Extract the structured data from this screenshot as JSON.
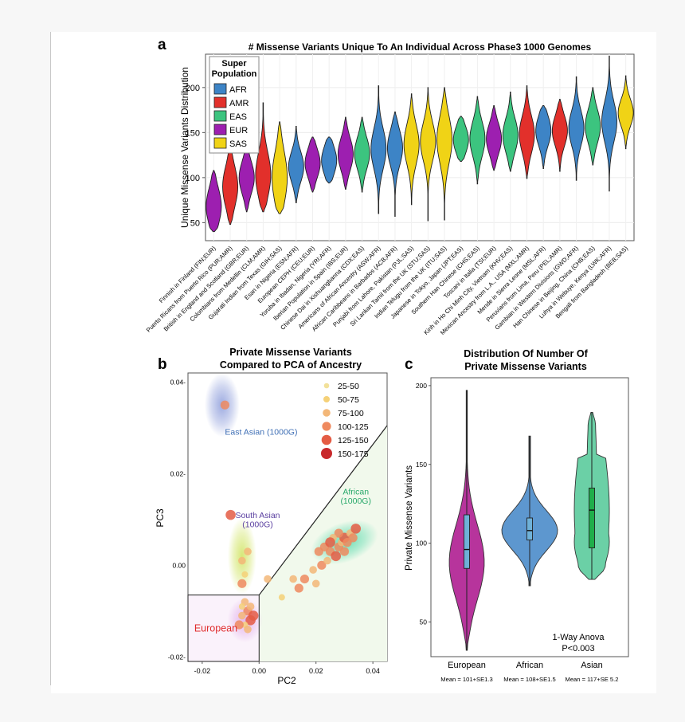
{
  "colors": {
    "AFR": "#3d84c6",
    "AMR": "#e2302b",
    "EAS": "#3cc47f",
    "EUR": "#9d1fb0",
    "SAS": "#f0d316",
    "European_c": "#b7349c",
    "African_c": "#5d97cf",
    "Asian_c": "#6bd0a6"
  },
  "chart_data": [
    {
      "panel": "a",
      "type": "violin",
      "title": "# Missense Variants Unique To An Individual Across Phase3 1000 Genomes",
      "ylabel": "Unique Missense Variants Distribution",
      "ylim": [
        30,
        237
      ],
      "yticks": [
        50,
        100,
        150,
        200
      ],
      "grid": true,
      "legend": {
        "title_line1": "Super",
        "title_line2": "Population",
        "placement": "top-left",
        "entries": [
          "AFR",
          "AMR",
          "EAS",
          "EUR",
          "SAS"
        ]
      },
      "categories": [
        {
          "label": "Finnish in Finland (FIN;EUR)",
          "group": "EUR",
          "min": 40,
          "q1": 57,
          "median": 68,
          "q3": 80,
          "max": 108
        },
        {
          "label": "Puerto Ricans from Puerto Rico (PUR;AMR)",
          "group": "AMR",
          "min": 48,
          "q1": 78,
          "median": 90,
          "q3": 103,
          "max": 132
        },
        {
          "label": "British in England and Scotland (GBR;EUR)",
          "group": "EUR",
          "min": 62,
          "q1": 90,
          "median": 100,
          "q3": 110,
          "max": 135
        },
        {
          "label": "Colombians from Medellin (CLM;AMR)",
          "group": "AMR",
          "min": 62,
          "q1": 90,
          "median": 103,
          "q3": 118,
          "max": 183
        },
        {
          "label": "Gujarati Indian from Texas (GIH;SAS)",
          "group": "SAS",
          "min": 60,
          "q1": 88,
          "median": 100,
          "q3": 120,
          "max": 162
        },
        {
          "label": "Esan in Nigeria (ESN;AFR)",
          "group": "AFR",
          "min": 72,
          "q1": 103,
          "median": 112,
          "q3": 122,
          "max": 157
        },
        {
          "label": "European CEPH (CEU;EUR)",
          "group": "EUR",
          "min": 84,
          "q1": 107,
          "median": 116,
          "q3": 125,
          "max": 145
        },
        {
          "label": "Yoruba in Ibadan, Nigeria (YRI;AFR)",
          "group": "AFR",
          "min": 94,
          "q1": 110,
          "median": 119,
          "q3": 128,
          "max": 145
        },
        {
          "label": "Iberian Population in Spain (IBS;EUR)",
          "group": "EUR",
          "min": 87,
          "q1": 117,
          "median": 126,
          "q3": 137,
          "max": 167
        },
        {
          "label": "Chinese Dai in Xishuangbanna (CDX;EAS)",
          "group": "EAS",
          "min": 84,
          "q1": 118,
          "median": 127,
          "q3": 138,
          "max": 167
        },
        {
          "label": "Americans of African Ancestry (ASW;AFR)",
          "group": "AFR",
          "min": 60,
          "q1": 120,
          "median": 132,
          "q3": 145,
          "max": 202
        },
        {
          "label": "African Caribbeans in Barbados (ACB;AFR)",
          "group": "AFR",
          "min": 57,
          "q1": 123,
          "median": 133,
          "q3": 145,
          "max": 173
        },
        {
          "label": "Punjabi from Lahore, Pakistan (PJL;SAS)",
          "group": "SAS",
          "min": 70,
          "q1": 125,
          "median": 137,
          "q3": 150,
          "max": 193
        },
        {
          "label": "Sri Lankan Tamil from the UK (STU;SAS)",
          "group": "SAS",
          "min": 52,
          "q1": 128,
          "median": 140,
          "q3": 152,
          "max": 200
        },
        {
          "label": "Indian Telugu from the UK (ITU;SAS)",
          "group": "SAS",
          "min": 53,
          "q1": 128,
          "median": 142,
          "q3": 157,
          "max": 200
        },
        {
          "label": "Japanese in Tokyo, Japan (JPT;EAS)",
          "group": "EAS",
          "min": 118,
          "q1": 133,
          "median": 142,
          "q3": 150,
          "max": 168
        },
        {
          "label": "Southern Han Chinese (CHS;EAS)",
          "group": "EAS",
          "min": 93,
          "q1": 133,
          "median": 143,
          "q3": 155,
          "max": 190
        },
        {
          "label": "Toscani in Italia (TSI;EUR)",
          "group": "EUR",
          "min": 108,
          "q1": 134,
          "median": 143,
          "q3": 153,
          "max": 180
        },
        {
          "label": "Kinh in Ho Chi Minh City, Vietnam (KHV;EAS)",
          "group": "EAS",
          "min": 107,
          "q1": 137,
          "median": 147,
          "q3": 158,
          "max": 195
        },
        {
          "label": "Mexican Ancestry from L.A., USA (MXL;AMR)",
          "group": "AMR",
          "min": 99,
          "q1": 137,
          "median": 148,
          "q3": 160,
          "max": 202
        },
        {
          "label": "Mende in Sierra Leone (MSL;AFR)",
          "group": "AFR",
          "min": 110,
          "q1": 143,
          "median": 152,
          "q3": 162,
          "max": 180
        },
        {
          "label": "Peruvians from Lima, Peru (PEL;AMR)",
          "group": "AMR",
          "min": 107,
          "q1": 143,
          "median": 152,
          "q3": 162,
          "max": 187
        },
        {
          "label": "Gambian in Western Divisions (GWD;AFR)",
          "group": "AFR",
          "min": 97,
          "q1": 145,
          "median": 155,
          "q3": 167,
          "max": 212
        },
        {
          "label": "Han Chinese in Beijing, China (CHB;EAS)",
          "group": "EAS",
          "min": 114,
          "q1": 147,
          "median": 157,
          "q3": 168,
          "max": 200
        },
        {
          "label": "Luhya in Webuye, Kenya (LWK;AFR)",
          "group": "AFR",
          "min": 85,
          "q1": 150,
          "median": 162,
          "q3": 175,
          "max": 235
        },
        {
          "label": "Bengali from Bangladesh (BEB;SAS)",
          "group": "SAS",
          "min": 132,
          "q1": 163,
          "median": 172,
          "q3": 180,
          "max": 213
        }
      ]
    },
    {
      "panel": "b",
      "type": "scatter",
      "title_line1": "Private Missense Variants",
      "title_line2": "Compared to PCA of Ancestry",
      "xlabel": "PC2",
      "ylabel": "PC3",
      "xlim": [
        -0.025,
        0.045
      ],
      "ylim": [
        -0.021,
        0.042
      ],
      "xticks": [
        "-0.02",
        "0.00",
        "0.02",
        "0.04"
      ],
      "yticks": [
        "0.04-",
        "0.02-",
        "0.00",
        "-0.02-"
      ],
      "regions": [
        {
          "label": "East Asian (1000G)",
          "color": "#3f6fb5",
          "cx": -0.013,
          "cy": 0.035
        },
        {
          "label_line1": "South Asian",
          "label_line2": "(1000G)",
          "color": "#5a3fa0",
          "cx": -0.006,
          "cy": 0.004
        },
        {
          "label_line1": "African",
          "label_line2": "(1000G)",
          "color": "#28a86a",
          "cx": 0.03,
          "cy": 0.005
        },
        {
          "label": "European",
          "color": "#e02b2b",
          "cx": -0.006,
          "cy": -0.012
        }
      ],
      "legend": {
        "placement": "top-right",
        "entries": [
          {
            "label": "25-50",
            "color": "#f2e19a"
          },
          {
            "label": "50-75",
            "color": "#f5d178"
          },
          {
            "label": "75-100",
            "color": "#f3b778"
          },
          {
            "label": "100-125",
            "color": "#ef8a5f"
          },
          {
            "label": "125-150",
            "color": "#e45c44"
          },
          {
            "label": "150-175",
            "color": "#c8292c"
          }
        ]
      },
      "points": [
        {
          "x": -0.012,
          "y": 0.035,
          "bin": 3
        },
        {
          "x": -0.01,
          "y": 0.011,
          "bin": 4
        },
        {
          "x": -0.006,
          "y": 0.001,
          "bin": 2
        },
        {
          "x": -0.005,
          "y": -0.002,
          "bin": 1
        },
        {
          "x": -0.004,
          "y": 0.003,
          "bin": 2
        },
        {
          "x": -0.006,
          "y": -0.004,
          "bin": 3
        },
        {
          "x": -0.005,
          "y": -0.008,
          "bin": 2
        },
        {
          "x": -0.004,
          "y": -0.01,
          "bin": 3
        },
        {
          "x": -0.006,
          "y": -0.011,
          "bin": 2
        },
        {
          "x": -0.003,
          "y": -0.012,
          "bin": 4
        },
        {
          "x": -0.005,
          "y": -0.013,
          "bin": 1
        },
        {
          "x": -0.003,
          "y": -0.009,
          "bin": 2
        },
        {
          "x": -0.007,
          "y": -0.013,
          "bin": 3
        },
        {
          "x": -0.004,
          "y": -0.014,
          "bin": 2
        },
        {
          "x": -0.002,
          "y": -0.011,
          "bin": 4
        },
        {
          "x": -0.006,
          "y": -0.009,
          "bin": 1
        },
        {
          "x": 0.003,
          "y": -0.003,
          "bin": 2
        },
        {
          "x": 0.008,
          "y": -0.007,
          "bin": 1
        },
        {
          "x": 0.014,
          "y": -0.005,
          "bin": 3
        },
        {
          "x": 0.012,
          "y": -0.003,
          "bin": 2
        },
        {
          "x": 0.016,
          "y": -0.003,
          "bin": 3
        },
        {
          "x": 0.02,
          "y": -0.004,
          "bin": 2
        },
        {
          "x": 0.022,
          "y": 0.0,
          "bin": 3
        },
        {
          "x": 0.024,
          "y": 0.001,
          "bin": 2
        },
        {
          "x": 0.025,
          "y": 0.003,
          "bin": 3
        },
        {
          "x": 0.027,
          "y": 0.002,
          "bin": 4
        },
        {
          "x": 0.028,
          "y": 0.004,
          "bin": 3
        },
        {
          "x": 0.029,
          "y": 0.005,
          "bin": 2
        },
        {
          "x": 0.03,
          "y": 0.006,
          "bin": 4
        },
        {
          "x": 0.031,
          "y": 0.005,
          "bin": 3
        },
        {
          "x": 0.032,
          "y": 0.007,
          "bin": 2
        },
        {
          "x": 0.033,
          "y": 0.006,
          "bin": 3
        },
        {
          "x": 0.034,
          "y": 0.008,
          "bin": 4
        },
        {
          "x": 0.028,
          "y": 0.007,
          "bin": 3
        },
        {
          "x": 0.026,
          "y": 0.006,
          "bin": 2
        },
        {
          "x": 0.023,
          "y": 0.004,
          "bin": 3
        },
        {
          "x": 0.019,
          "y": -0.001,
          "bin": 2
        },
        {
          "x": 0.021,
          "y": 0.003,
          "bin": 3
        },
        {
          "x": 0.025,
          "y": 0.005,
          "bin": 4
        },
        {
          "x": 0.03,
          "y": 0.003,
          "bin": 3
        }
      ]
    },
    {
      "panel": "c",
      "type": "violin",
      "title_line1": "Distribution Of Number Of",
      "title_line2": "Private Missense Variants",
      "ylabel": "Private Missense Variants",
      "ylim": [
        28,
        205
      ],
      "yticks": [
        50,
        100,
        150,
        200
      ],
      "annotation_line1": "1-Way Anova",
      "annotation_line2": "P<0.003",
      "categories": [
        {
          "label": "European",
          "mean_label": "Mean = 101+SE1.3",
          "min": 32,
          "q1": 84,
          "median": 96,
          "q3": 118,
          "max": 197,
          "shape": "long_bottom"
        },
        {
          "label": "African",
          "mean_label": "Mean = 108+SE1.5",
          "min": 73,
          "q1": 102,
          "median": 108,
          "q3": 116,
          "max": 168,
          "shape": "wide_mid"
        },
        {
          "label": "Asian",
          "mean_label": "Mean = 117+SE 5.2",
          "min": 77,
          "q1": 97,
          "median": 121,
          "q3": 135,
          "max": 183,
          "shape": "wide_low"
        }
      ]
    }
  ],
  "panel_labels": {
    "a": "a",
    "b": "b",
    "c": "c"
  }
}
